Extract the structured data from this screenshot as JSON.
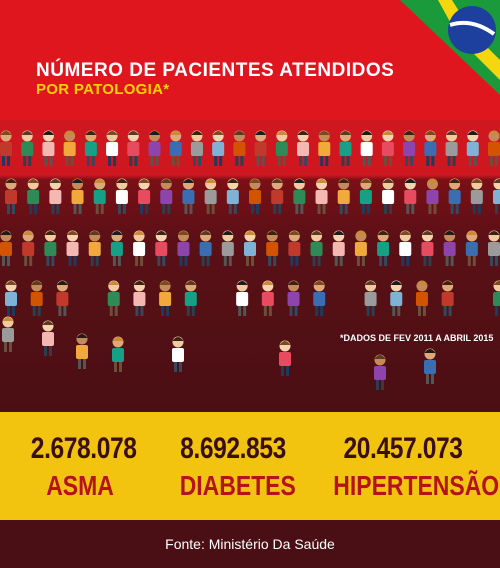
{
  "header": {
    "title": "NÚMERO DE PACIENTES ATENDIDOS",
    "subtitle": "POR PATOLOGIA*"
  },
  "footnote": "*DADOS DE FEV 2011 A ABRIL 2015",
  "source": "Fonte: Ministério Da Saúde",
  "colors": {
    "header_red": "#e0161f",
    "dark_bg": "#4a0f14",
    "stats_yellow": "#f2c410",
    "label_red": "#b5121b"
  },
  "icons": [
    "brazil-flag-icon",
    "person-icon"
  ],
  "chart_data": {
    "type": "table",
    "categories": [
      "ASMA",
      "DIABETES",
      "HIPERTENSÃO"
    ],
    "values": [
      2678078,
      8692853,
      20457073
    ],
    "value_labels": [
      "2.678.078",
      "8.692.853",
      "20.457.073"
    ]
  }
}
